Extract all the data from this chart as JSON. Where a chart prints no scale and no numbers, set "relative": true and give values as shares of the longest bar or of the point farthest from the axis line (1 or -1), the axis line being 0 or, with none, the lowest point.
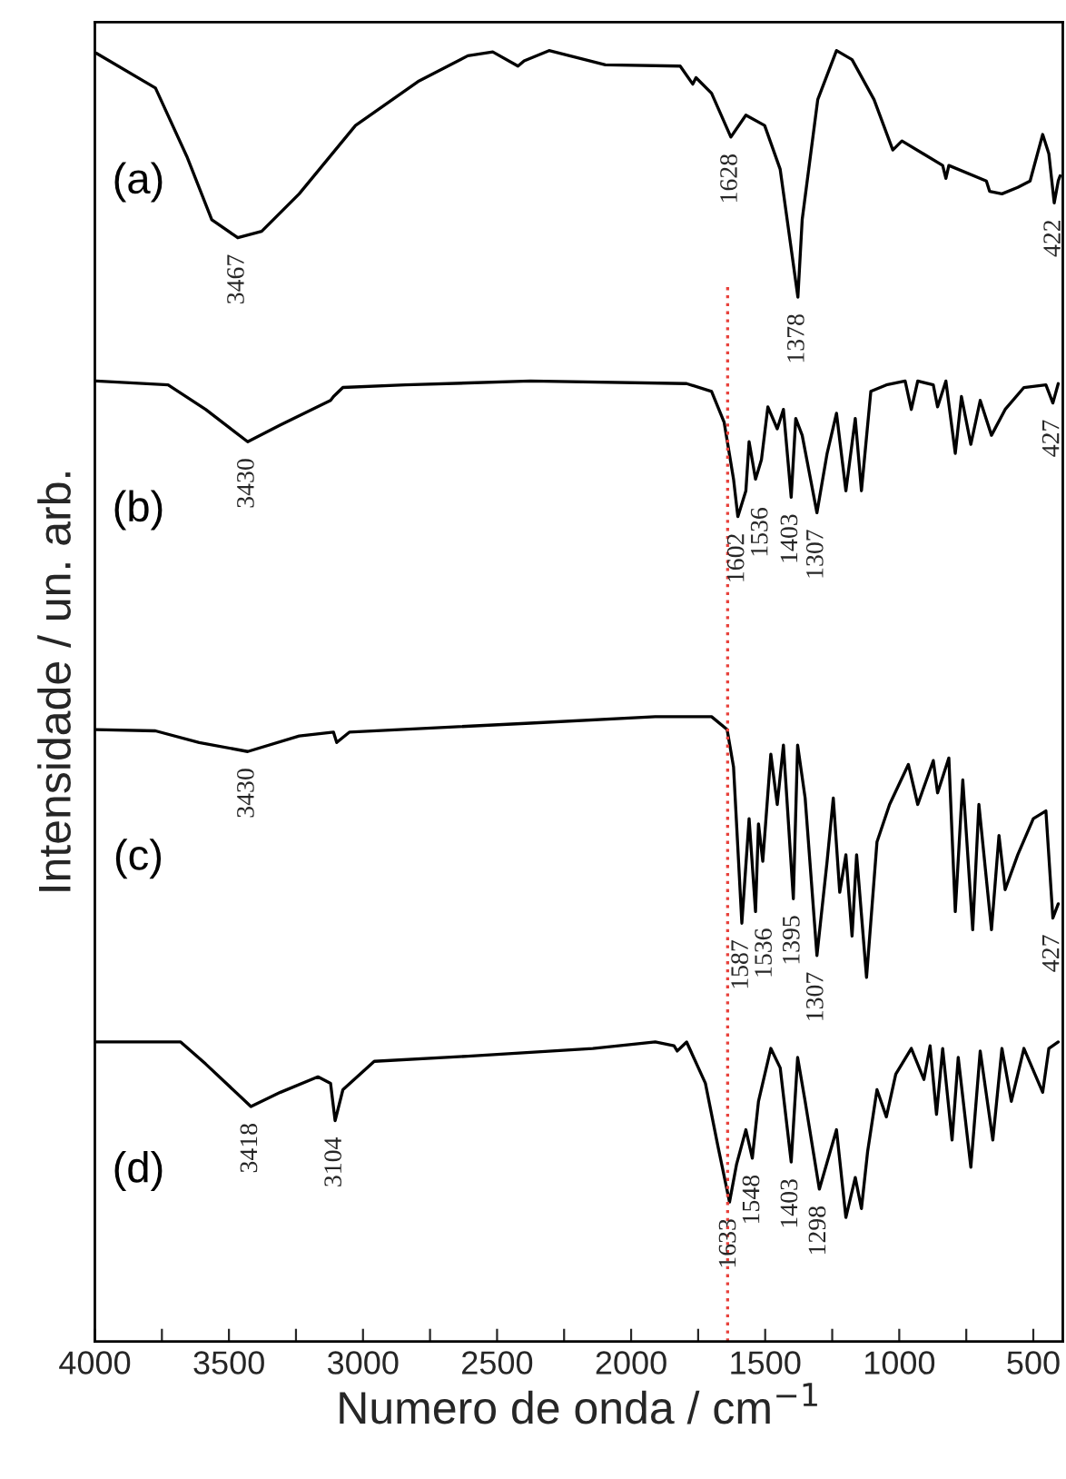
{
  "chart_data": {
    "type": "line",
    "relative": true,
    "xlabel": "Numero de onda / cm$^{−1}$",
    "ylabel": "Intensidade / un. arb.",
    "xlim": [
      4000,
      390
    ],
    "xticks": [
      4000,
      {
        "value": 3750,
        "label": null
      },
      3500,
      {
        "value": 3250,
        "label": null
      },
      3000,
      {
        "value": 2750,
        "label": null
      },
      2500,
      {
        "value": 2250,
        "label": null
      },
      2000,
      {
        "value": 1750,
        "label": null
      },
      1500,
      {
        "value": 1250,
        "label": null
      },
      1000,
      {
        "value": 750,
        "label": null
      },
      500
    ],
    "tick_labels": "x",
    "grid": false,
    "legend": false,
    "series": [
      {
        "name": "(a)",
        "color": "#000000",
        "x": [
          3995,
          3774,
          3657,
          3564,
          3467,
          3378,
          3238,
          3028,
          2795,
          2609,
          2516,
          2422,
          2399,
          2306,
          2096,
          1817,
          1770,
          1758,
          1700,
          1628,
          1572,
          1502,
          1444,
          1378,
          1362,
          1304,
          1234,
          1176,
          1094,
          1024,
          990,
          838,
          826,
          815,
          675,
          663,
          617,
          558,
          512,
          465,
          442,
          422,
          407,
          400
        ],
        "values": [
          0.998,
          0.971,
          0.918,
          0.869,
          0.855,
          0.86,
          0.889,
          0.942,
          0.976,
          0.996,
          0.999,
          0.988,
          0.992,
          1.0,
          0.989,
          0.988,
          0.974,
          0.979,
          0.967,
          0.933,
          0.95,
          0.942,
          0.908,
          0.809,
          0.869,
          0.962,
          1.0,
          0.993,
          0.962,
          0.923,
          0.93,
          0.911,
          0.901,
          0.911,
          0.899,
          0.891,
          0.889,
          0.894,
          0.899,
          0.935,
          0.92,
          0.882,
          0.899,
          0.903
        ]
      },
      {
        "name": "(b)",
        "color": "#000000",
        "x": [
          3995,
          3727,
          3587,
          3430,
          3308,
          3121,
          3110,
          3075,
          2842,
          2376,
          1793,
          1700,
          1653,
          1618,
          1602,
          1572,
          1560,
          1536,
          1514,
          1490,
          1455,
          1432,
          1403,
          1386,
          1362,
          1307,
          1269,
          1234,
          1199,
          1164,
          1141,
          1106,
          1048,
          978,
          955,
          931,
          873,
          857,
          826,
          791,
          768,
          733,
          698,
          656,
          605,
          535,
          453,
          427,
          407
        ],
        "values": [
          0.744,
          0.741,
          0.722,
          0.697,
          0.71,
          0.729,
          0.732,
          0.739,
          0.741,
          0.744,
          0.742,
          0.736,
          0.712,
          0.668,
          0.639,
          0.659,
          0.697,
          0.668,
          0.683,
          0.724,
          0.707,
          0.722,
          0.654,
          0.715,
          0.702,
          0.642,
          0.688,
          0.719,
          0.659,
          0.715,
          0.659,
          0.736,
          0.741,
          0.744,
          0.722,
          0.744,
          0.741,
          0.724,
          0.744,
          0.688,
          0.732,
          0.695,
          0.729,
          0.702,
          0.722,
          0.739,
          0.741,
          0.727,
          0.742
        ]
      },
      {
        "name": "(c)",
        "color": "#000000",
        "x": [
          3995,
          3774,
          3611,
          3430,
          3238,
          3110,
          3098,
          3051,
          2376,
          1910,
          1700,
          1642,
          1618,
          1587,
          1560,
          1536,
          1525,
          1509,
          1479,
          1455,
          1432,
          1395,
          1379,
          1351,
          1307,
          1269,
          1246,
          1222,
          1199,
          1176,
          1159,
          1122,
          1083,
          1036,
          966,
          931,
          873,
          857,
          815,
          791,
          763,
          726,
          703,
          656,
          628,
          605,
          558,
          500,
          453,
          427,
          407
        ],
        "values": [
          0.474,
          0.473,
          0.464,
          0.457,
          0.469,
          0.472,
          0.464,
          0.472,
          0.479,
          0.484,
          0.484,
          0.474,
          0.445,
          0.324,
          0.405,
          0.333,
          0.401,
          0.372,
          0.455,
          0.416,
          0.462,
          0.343,
          0.462,
          0.421,
          0.299,
          0.372,
          0.421,
          0.348,
          0.377,
          0.314,
          0.377,
          0.282,
          0.387,
          0.416,
          0.447,
          0.416,
          0.45,
          0.425,
          0.452,
          0.333,
          0.435,
          0.319,
          0.416,
          0.319,
          0.392,
          0.35,
          0.377,
          0.405,
          0.411,
          0.328,
          0.339
        ]
      },
      {
        "name": "(d)",
        "color": "#000000",
        "x": [
          3995,
          3844,
          3680,
          3587,
          3418,
          3308,
          3168,
          3121,
          3104,
          3075,
          2958,
          2609,
          2143,
          1910,
          1840,
          1828,
          1793,
          1723,
          1677,
          1633,
          1607,
          1572,
          1548,
          1525,
          1479,
          1444,
          1403,
          1379,
          1351,
          1298,
          1234,
          1199,
          1164,
          1141,
          1118,
          1083,
          1048,
          1013,
          955,
          908,
          885,
          861,
          838,
          803,
          780,
          733,
          698,
          651,
          617,
          582,
          535,
          465,
          442,
          407
        ],
        "values": [
          0.232,
          0.232,
          0.232,
          0.215,
          0.182,
          0.193,
          0.205,
          0.2,
          0.171,
          0.195,
          0.217,
          0.221,
          0.227,
          0.232,
          0.229,
          0.225,
          0.232,
          0.2,
          0.152,
          0.108,
          0.137,
          0.164,
          0.142,
          0.186,
          0.227,
          0.212,
          0.139,
          0.22,
          0.186,
          0.118,
          0.164,
          0.096,
          0.127,
          0.103,
          0.147,
          0.195,
          0.174,
          0.207,
          0.227,
          0.203,
          0.229,
          0.176,
          0.227,
          0.156,
          0.22,
          0.135,
          0.225,
          0.156,
          0.227,
          0.186,
          0.227,
          0.193,
          0.227,
          0.232
        ]
      }
    ],
    "ref_lines": [
      {
        "axis": "x",
        "value": 1640,
        "color": "#e8423c",
        "line_style": "dotted"
      }
    ],
    "annotations": [
      {
        "text": "3467",
        "x": 3467,
        "y": 0.855
      },
      {
        "text": "1628",
        "x": 1628,
        "y": 0.933
      },
      {
        "text": "1378",
        "x": 1378,
        "y": 0.809
      },
      {
        "text": "422",
        "x": 422,
        "y": 0.882
      },
      {
        "text": "3430",
        "x": 3430,
        "y": 0.697
      },
      {
        "text": "1602",
        "x": 1602,
        "y": 0.639
      },
      {
        "text": "1536",
        "x": 1536,
        "y": 0.668
      },
      {
        "text": "1403",
        "x": 1403,
        "y": 0.654
      },
      {
        "text": "1307",
        "x": 1307,
        "y": 0.642
      },
      {
        "text": "427",
        "x": 427,
        "y": 0.727
      },
      {
        "text": "3430",
        "x": 3430,
        "y": 0.457
      },
      {
        "text": "1587",
        "x": 1587,
        "y": 0.324
      },
      {
        "text": "1536",
        "x": 1536,
        "y": 0.333
      },
      {
        "text": "1395",
        "x": 1395,
        "y": 0.343
      },
      {
        "text": "1307",
        "x": 1307,
        "y": 0.299
      },
      {
        "text": "427",
        "x": 427,
        "y": 0.328
      },
      {
        "text": "3418",
        "x": 3418,
        "y": 0.182
      },
      {
        "text": "3104",
        "x": 3104,
        "y": 0.171
      },
      {
        "text": "1633",
        "x": 1633,
        "y": 0.108
      },
      {
        "text": "1548",
        "x": 1548,
        "y": 0.142
      },
      {
        "text": "1403",
        "x": 1403,
        "y": 0.139
      },
      {
        "text": "1298",
        "x": 1298,
        "y": 0.118
      }
    ]
  }
}
